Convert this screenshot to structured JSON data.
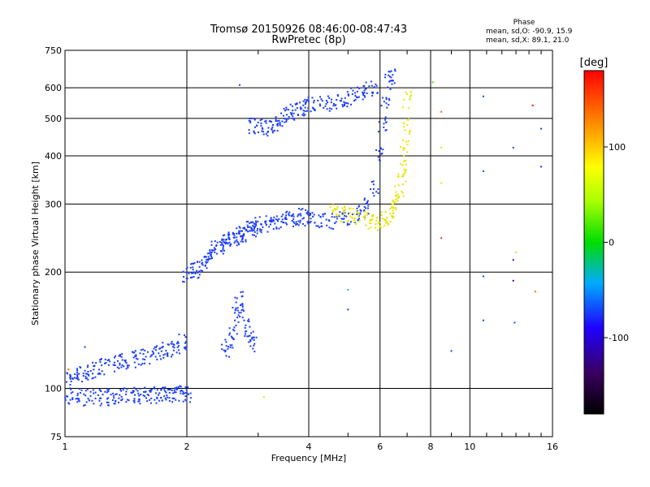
{
  "header": {
    "title_line1": "Tromsø 20150926 08:46:00-08:47:43",
    "title_line2": "RwPretec (8p)"
  },
  "phase_box": {
    "title": "Phase",
    "line1": "mean, sd,O: -90.9, 15.9",
    "line2": "mean, sd,X:  89.1, 21.0"
  },
  "chart_data": {
    "type": "scatter",
    "xlabel": "Frequency [MHz]",
    "ylabel": "Stationary phase Virtual Height [km]",
    "xscale": "log",
    "yscale": "log",
    "xlim": [
      1,
      16
    ],
    "ylim": [
      75,
      750
    ],
    "xticks": [
      1,
      2,
      4,
      6,
      8,
      10,
      16
    ],
    "xtick_labels": [
      "1",
      "2",
      "4",
      "6",
      "8",
      "10",
      "16"
    ],
    "yticks": [
      75,
      100,
      200,
      300,
      400,
      500,
      600,
      750
    ],
    "ytick_labels": [
      "75",
      "100",
      "200",
      "300",
      "400",
      "500",
      "600",
      "750"
    ],
    "grid": true,
    "colorbar": {
      "label": "[deg]",
      "range": [
        -180,
        180
      ],
      "ticks": [
        100,
        0,
        -100
      ],
      "tick_labels": [
        "100",
        "0",
        "-100"
      ]
    },
    "series": [
      {
        "color": "#1a3cff",
        "description_phase": -100,
        "x": [
          1.02,
          1.05,
          1.08,
          1.12,
          1.16,
          1.2,
          1.25,
          1.3,
          1.35,
          1.4,
          1.46,
          1.52,
          1.58,
          1.64,
          1.7,
          1.76,
          1.82,
          1.88,
          1.95,
          2.0,
          2.05,
          2.1,
          2.15,
          2.2,
          2.25,
          2.3,
          2.35,
          2.4,
          2.45,
          2.5,
          2.55,
          2.6,
          2.65,
          2.7,
          2.75,
          2.8,
          2.85,
          2.9,
          2.95,
          3.0,
          3.1,
          3.2,
          3.3,
          3.4,
          3.5,
          3.6,
          3.7,
          3.8,
          3.9,
          4.0,
          4.2,
          4.4,
          4.6,
          4.8,
          5.0,
          5.2,
          5.4,
          5.6,
          5.8,
          6.0,
          6.1,
          6.2,
          6.3,
          6.4
        ],
        "y": [
          107,
          108,
          109,
          109,
          110,
          112,
          114,
          116,
          117,
          118,
          119,
          120,
          121,
          122,
          124,
          126,
          127,
          129,
          132,
          198,
          201,
          203,
          205,
          212,
          218,
          225,
          232,
          234,
          238,
          240,
          242,
          245,
          248,
          250,
          252,
          255,
          258,
          260,
          262,
          264,
          266,
          268,
          270,
          272,
          274,
          276,
          278,
          279,
          280,
          275,
          272,
          270,
          272,
          274,
          278,
          282,
          288,
          298,
          330,
          400,
          480,
          560,
          620,
          640
        ]
      },
      {
        "color": "#1a3cff",
        "description_phase": -100,
        "x": [
          1.02,
          1.06,
          1.1,
          1.15,
          1.2,
          1.25,
          1.3,
          1.35,
          1.4,
          1.45,
          1.5,
          1.55,
          1.6,
          1.65,
          1.7,
          1.75,
          1.8,
          1.85,
          1.9,
          1.95,
          2.0
        ],
        "y": [
          96,
          95,
          95,
          95,
          95,
          95,
          95,
          95,
          96,
          96,
          96,
          96,
          96,
          96,
          96,
          96,
          96,
          96,
          97,
          97,
          97
        ]
      },
      {
        "color": "#1a3cff",
        "description_phase": -100,
        "x": [
          2.5,
          2.55,
          2.6,
          2.65,
          2.7,
          2.75,
          2.8,
          2.85,
          2.9
        ],
        "y": [
          125,
          130,
          140,
          155,
          170,
          160,
          145,
          135,
          130
        ]
      },
      {
        "color": "#1a3cff",
        "description_phase": -100,
        "x": [
          2.9,
          3.0,
          3.1,
          3.2,
          3.3,
          3.4,
          3.5,
          3.6,
          3.7,
          3.8,
          3.9,
          4.0,
          4.2,
          4.4,
          4.6,
          4.8,
          5.0,
          5.2,
          5.4,
          5.6,
          5.8
        ],
        "y": [
          480,
          478,
          476,
          470,
          485,
          500,
          510,
          520,
          525,
          530,
          535,
          540,
          545,
          548,
          550,
          555,
          560,
          570,
          580,
          590,
          600
        ]
      },
      {
        "color": "#e6e600",
        "description_phase": 110,
        "x": [
          4.6,
          4.8,
          5.0,
          5.2,
          5.4,
          5.6,
          5.8,
          6.0,
          6.2,
          6.4,
          6.5,
          6.6,
          6.7,
          6.8,
          6.85,
          6.9,
          6.95,
          7.0
        ],
        "y": [
          285,
          282,
          280,
          278,
          275,
          272,
          270,
          272,
          275,
          282,
          290,
          300,
          320,
          350,
          380,
          420,
          480,
          560
        ]
      }
    ],
    "scatter_points_extra": [
      {
        "x": 8.1,
        "y": 620,
        "color": "#66cc00"
      },
      {
        "x": 8.5,
        "y": 520,
        "color": "#ff6600"
      },
      {
        "x": 8.5,
        "y": 420,
        "color": "#e6e600"
      },
      {
        "x": 8.5,
        "y": 340,
        "color": "#e6e600"
      },
      {
        "x": 8.5,
        "y": 245,
        "color": "#ff3300"
      },
      {
        "x": 10.8,
        "y": 570,
        "color": "#1a3cff"
      },
      {
        "x": 10.8,
        "y": 365,
        "color": "#1a3cff"
      },
      {
        "x": 10.8,
        "y": 195,
        "color": "#1a3cff"
      },
      {
        "x": 10.8,
        "y": 150,
        "color": "#1a3cff"
      },
      {
        "x": 12.8,
        "y": 420,
        "color": "#1a3cff"
      },
      {
        "x": 12.8,
        "y": 215,
        "color": "#4400aa"
      },
      {
        "x": 12.8,
        "y": 190,
        "color": "#4400aa"
      },
      {
        "x": 12.9,
        "y": 148,
        "color": "#1a3cff"
      },
      {
        "x": 13.0,
        "y": 225,
        "color": "#e6e600"
      },
      {
        "x": 14.3,
        "y": 540,
        "color": "#ff0000"
      },
      {
        "x": 14.5,
        "y": 178,
        "color": "#ff6600"
      },
      {
        "x": 15.0,
        "y": 470,
        "color": "#1a3cff"
      },
      {
        "x": 15.0,
        "y": 375,
        "color": "#1a3cff"
      },
      {
        "x": 9.0,
        "y": 125,
        "color": "#1a3cff"
      },
      {
        "x": 5.0,
        "y": 160,
        "color": "#1a3cff"
      },
      {
        "x": 5.0,
        "y": 180,
        "color": "#00cccc"
      },
      {
        "x": 3.1,
        "y": 95,
        "color": "#e6e600"
      },
      {
        "x": 2.7,
        "y": 610,
        "color": "#1a3cff"
      },
      {
        "x": 1.12,
        "y": 128,
        "color": "#1a3cff"
      },
      {
        "x": 1.02,
        "y": 112,
        "color": "#ff6600"
      }
    ]
  }
}
